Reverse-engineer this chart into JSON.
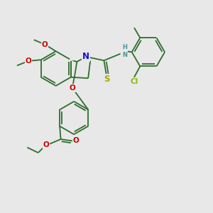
{
  "bg_color": "#e8e8e8",
  "bond_color": "#2d6e2d",
  "lw": 1.3,
  "fs": 7.5,
  "atoms": {
    "N": {
      "color": "#1010cc"
    },
    "NH": {
      "color": "#509090"
    },
    "O": {
      "color": "#cc0000"
    },
    "S": {
      "color": "#aaaa00"
    },
    "Cl": {
      "color": "#88bb00"
    }
  },
  "xlim": [
    0,
    10
  ],
  "ylim": [
    0,
    10
  ]
}
